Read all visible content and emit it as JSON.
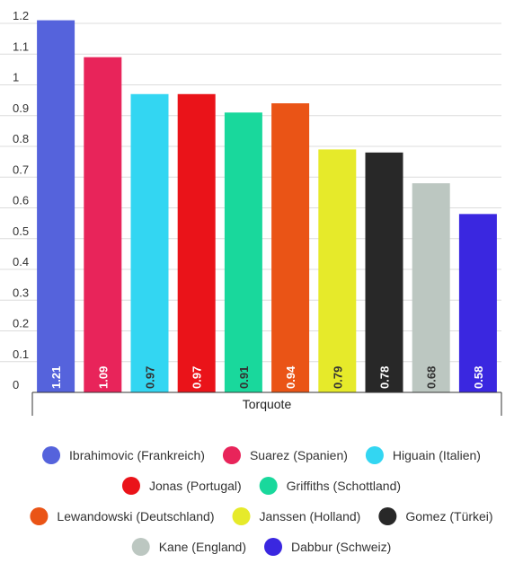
{
  "chart_data": {
    "type": "bar",
    "xlabel": "Torquote",
    "ylabel": "",
    "ylim": [
      0,
      1.2
    ],
    "y_ticks": [
      "0",
      "0.1",
      "0.2",
      "0.3",
      "0.4",
      "0.5",
      "0.6",
      "0.7",
      "0.8",
      "0.9",
      "1",
      "1.1",
      "1.2"
    ],
    "grid": true,
    "legend_position": "bottom",
    "series": [
      {
        "name": "Ibrahimovic (Frankreich)",
        "value": 1.21,
        "label": "1.21",
        "color": "#5563dc",
        "label_color": "#ffffff"
      },
      {
        "name": "Suarez (Spanien)",
        "value": 1.09,
        "label": "1.09",
        "color": "#e8245a",
        "label_color": "#ffffff"
      },
      {
        "name": "Higuain (Italien)",
        "value": 0.97,
        "label": "0.97",
        "color": "#33d6f2",
        "label_color": "#333333"
      },
      {
        "name": "Jonas (Portugal)",
        "value": 0.97,
        "label": "0.97",
        "color": "#ea1319",
        "label_color": "#ffffff"
      },
      {
        "name": "Griffiths (Schottland)",
        "value": 0.91,
        "label": "0.91",
        "color": "#19d89c",
        "label_color": "#333333"
      },
      {
        "name": "Lewandowski (Deutschland)",
        "value": 0.94,
        "label": "0.94",
        "color": "#ea5416",
        "label_color": "#ffffff"
      },
      {
        "name": "Janssen (Holland)",
        "value": 0.79,
        "label": "0.79",
        "color": "#e6ea2a",
        "label_color": "#333333"
      },
      {
        "name": "Gomez (Türkei)",
        "value": 0.78,
        "label": "0.78",
        "color": "#282828",
        "label_color": "#ffffff"
      },
      {
        "name": "Kane (England)",
        "value": 0.68,
        "label": "0.68",
        "color": "#bcc7c1",
        "label_color": "#333333"
      },
      {
        "name": "Dabbur (Schweiz)",
        "value": 0.58,
        "label": "0.58",
        "color": "#3a27e0",
        "label_color": "#ffffff"
      }
    ]
  }
}
